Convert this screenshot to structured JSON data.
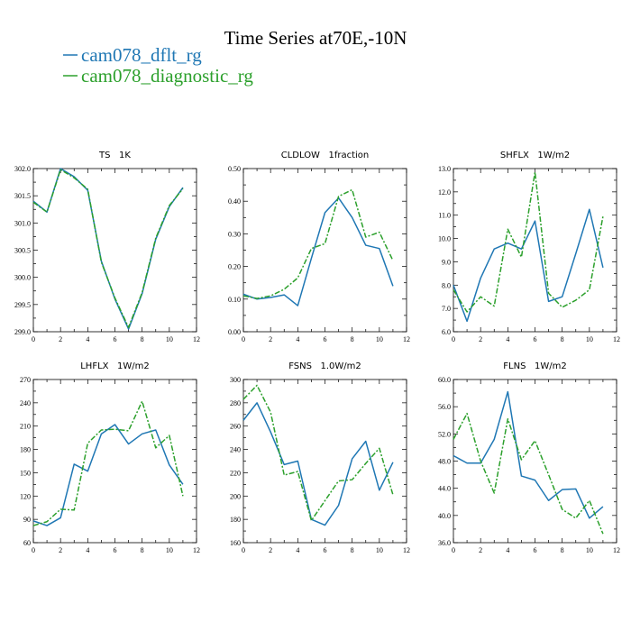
{
  "figure": {
    "title": "Time Series at70E,-10N",
    "legend": [
      {
        "name": "cam078_dflt_rg",
        "color": "#1f77b4",
        "dash": ""
      },
      {
        "name": "cam078_diagnostic_rg",
        "color": "#2ca02c",
        "dash": "6,2,2,2"
      }
    ]
  },
  "chart_data": [
    {
      "type": "line",
      "title": "TS   1K",
      "x": [
        0,
        1,
        2,
        3,
        4,
        5,
        6,
        7,
        8,
        9,
        10,
        11
      ],
      "xlim": [
        0,
        12
      ],
      "xticks": [
        "0",
        "2",
        "4",
        "6",
        "8",
        "10",
        "12"
      ],
      "ylim": [
        299.0,
        302.0
      ],
      "yticks": [
        "299.0",
        "299.5",
        "300.0",
        "300.5",
        "301.0",
        "301.5",
        "302.0"
      ],
      "series": [
        {
          "name": "cam078_dflt_rg",
          "values": [
            301.4,
            301.2,
            302.0,
            301.85,
            301.6,
            300.3,
            299.6,
            299.05,
            299.7,
            300.7,
            301.3,
            301.65
          ]
        },
        {
          "name": "cam078_diagnostic_rg",
          "values": [
            301.38,
            301.2,
            301.98,
            301.83,
            301.62,
            300.28,
            299.62,
            299.08,
            299.72,
            300.72,
            301.32,
            301.63
          ]
        }
      ]
    },
    {
      "type": "line",
      "title": "CLDLOW   1fraction",
      "x": [
        0,
        1,
        2,
        3,
        4,
        5,
        6,
        7,
        8,
        9,
        10,
        11
      ],
      "xlim": [
        0,
        12
      ],
      "xticks": [
        "0",
        "2",
        "4",
        "6",
        "8",
        "10",
        "12"
      ],
      "ylim": [
        0.0,
        0.5
      ],
      "yticks": [
        "0.00",
        "0.10",
        "0.20",
        "0.30",
        "0.40",
        "0.50"
      ],
      "series": [
        {
          "name": "cam078_dflt_rg",
          "values": [
            0.115,
            0.1,
            0.105,
            0.113,
            0.08,
            0.225,
            0.365,
            0.41,
            0.35,
            0.265,
            0.255,
            0.14
          ]
        },
        {
          "name": "cam078_diagnostic_rg",
          "values": [
            0.11,
            0.102,
            0.11,
            0.13,
            0.165,
            0.255,
            0.27,
            0.415,
            0.435,
            0.29,
            0.305,
            0.218
          ]
        }
      ]
    },
    {
      "type": "line",
      "title": "SHFLX   1W/m2",
      "x": [
        0,
        1,
        2,
        3,
        4,
        5,
        6,
        7,
        8,
        9,
        10,
        11
      ],
      "xlim": [
        0,
        12
      ],
      "xticks": [
        "0",
        "2",
        "4",
        "6",
        "8",
        "10",
        "12"
      ],
      "ylim": [
        6.0,
        13.0
      ],
      "yticks": [
        "6.0",
        "7.0",
        "8.0",
        "9.0",
        "10.0",
        "11.0",
        "12.0",
        "13.0"
      ],
      "series": [
        {
          "name": "cam078_dflt_rg",
          "values": [
            8.0,
            6.45,
            8.3,
            9.55,
            9.8,
            9.55,
            10.75,
            7.3,
            7.5,
            9.35,
            11.25,
            8.75
          ]
        },
        {
          "name": "cam078_diagnostic_rg",
          "values": [
            7.8,
            6.85,
            7.5,
            7.1,
            10.4,
            9.2,
            12.85,
            7.65,
            7.05,
            7.35,
            7.8,
            10.95
          ]
        }
      ]
    },
    {
      "type": "line",
      "title": "LHFLX   1W/m2",
      "x": [
        0,
        1,
        2,
        3,
        4,
        5,
        6,
        7,
        8,
        9,
        10,
        11
      ],
      "xlim": [
        0,
        12
      ],
      "xticks": [
        "0",
        "2",
        "4",
        "6",
        "8",
        "10",
        "12"
      ],
      "ylim": [
        60,
        270
      ],
      "yticks": [
        "60",
        "90",
        "120",
        "150",
        "180",
        "210",
        "240",
        "270"
      ],
      "series": [
        {
          "name": "cam078_dflt_rg",
          "values": [
            88,
            82,
            92,
            161,
            152,
            200,
            212,
            187,
            200,
            205,
            160,
            135
          ]
        },
        {
          "name": "cam078_diagnostic_rg",
          "values": [
            82,
            87,
            103,
            102,
            188,
            205,
            206,
            204,
            242,
            182,
            198,
            120
          ]
        }
      ]
    },
    {
      "type": "line",
      "title": "FSNS   1.0W/m2",
      "x": [
        0,
        1,
        2,
        3,
        4,
        5,
        6,
        7,
        8,
        9,
        10,
        11
      ],
      "xlim": [
        0,
        12
      ],
      "xticks": [
        "0",
        "2",
        "4",
        "6",
        "8",
        "10",
        "12"
      ],
      "ylim": [
        160,
        300
      ],
      "yticks": [
        "160",
        "180",
        "200",
        "220",
        "240",
        "260",
        "280",
        "300"
      ],
      "series": [
        {
          "name": "cam078_dflt_rg",
          "values": [
            265,
            280,
            255,
            227,
            230,
            180,
            175,
            192,
            232,
            247,
            205,
            229
          ]
        },
        {
          "name": "cam078_diagnostic_rg",
          "values": [
            283,
            295,
            272,
            218,
            221,
            179,
            196,
            213,
            214,
            228,
            241,
            201
          ]
        }
      ]
    },
    {
      "type": "line",
      "title": "FLNS   1W/m2",
      "x": [
        0,
        1,
        2,
        3,
        4,
        5,
        6,
        7,
        8,
        9,
        10,
        11
      ],
      "xlim": [
        0,
        12
      ],
      "xticks": [
        "0",
        "2",
        "4",
        "6",
        "8",
        "10",
        "12"
      ],
      "ylim": [
        36.0,
        60.0
      ],
      "yticks": [
        "36.0",
        "40.0",
        "44.0",
        "48.0",
        "52.0",
        "56.0",
        "60.0"
      ],
      "series": [
        {
          "name": "cam078_dflt_rg",
          "values": [
            48.8,
            47.7,
            47.7,
            51.2,
            58.2,
            45.8,
            45.2,
            42.2,
            43.8,
            43.9,
            39.6,
            41.3
          ]
        },
        {
          "name": "cam078_diagnostic_rg",
          "values": [
            51.2,
            55.0,
            48.0,
            43.3,
            54.2,
            48.2,
            51.0,
            46.0,
            40.9,
            39.6,
            42.2,
            37.3
          ]
        }
      ]
    }
  ]
}
